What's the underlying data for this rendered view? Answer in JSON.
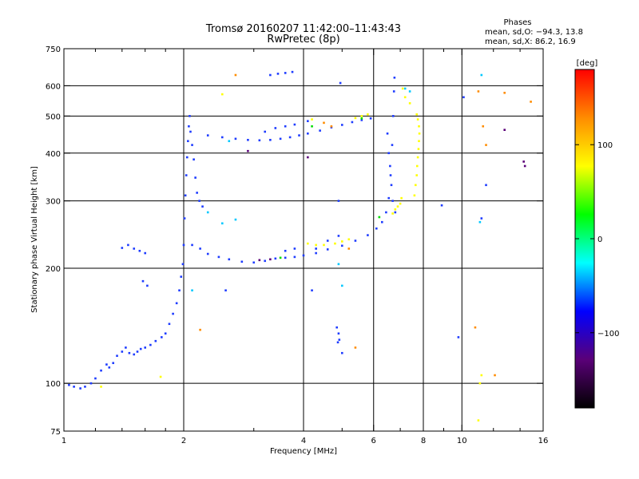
{
  "title_line1": "Tromsø 20160207 11:42:00–11:43:43",
  "title_line2": "RwPretec (8p)",
  "legend": {
    "heading": "Phases",
    "line1": "mean, sd,O: −94.3, 13.8",
    "line2": "mean, sd,X:  86.2, 16.9"
  },
  "colorbar": {
    "unit_label": "[deg]",
    "tick_labels": [
      "100",
      "0",
      "−100"
    ],
    "tick_values": [
      100,
      0,
      -100
    ],
    "range": [
      -180,
      180
    ],
    "colors": [
      "#ff0000",
      "#ff8c00",
      "#ffff00",
      "#00ff00",
      "#00ffff",
      "#0000ff",
      "#5a0078",
      "#000000"
    ]
  },
  "chart_data": {
    "type": "scatter",
    "xlabel": "Frequency [MHz]",
    "ylabel": "Stationary phase Virtual Height [km]",
    "x_scale": "log",
    "y_scale": "log",
    "xlim": [
      1,
      16
    ],
    "ylim": [
      75,
      750
    ],
    "x_ticks": [
      1,
      2,
      4,
      6,
      8,
      10,
      16
    ],
    "x_tick_labels": [
      "1",
      "2",
      "4",
      "6",
      "8",
      "10",
      "16"
    ],
    "x_minor_ticks": [
      1.2,
      1.4,
      1.6,
      1.8,
      3,
      5,
      7,
      9,
      12,
      14
    ],
    "y_ticks": [
      75,
      100,
      200,
      300,
      400,
      500,
      600,
      750
    ],
    "y_tick_labels": [
      "75",
      "100",
      "200",
      "300",
      "400",
      "500",
      "600",
      "750"
    ],
    "grid": true,
    "series": [
      {
        "color": "#1e3cff",
        "points": [
          [
            1.03,
            99
          ],
          [
            1.06,
            98
          ],
          [
            1.1,
            97
          ],
          [
            1.13,
            98
          ],
          [
            1.17,
            100
          ],
          [
            1.2,
            103
          ],
          [
            1.24,
            108
          ],
          [
            1.28,
            112
          ],
          [
            1.3,
            110
          ],
          [
            1.33,
            113
          ],
          [
            1.36,
            118
          ],
          [
            1.4,
            121
          ],
          [
            1.43,
            124
          ],
          [
            1.46,
            120
          ],
          [
            1.5,
            119
          ],
          [
            1.53,
            121
          ],
          [
            1.56,
            123
          ],
          [
            1.6,
            124
          ],
          [
            1.65,
            126
          ],
          [
            1.7,
            129
          ],
          [
            1.76,
            132
          ],
          [
            1.8,
            135
          ],
          [
            1.84,
            143
          ],
          [
            1.88,
            152
          ],
          [
            1.92,
            162
          ],
          [
            1.95,
            175
          ],
          [
            1.97,
            190
          ],
          [
            1.99,
            205
          ],
          [
            2.0,
            230
          ],
          [
            2.01,
            270
          ],
          [
            2.02,
            310
          ],
          [
            2.03,
            350
          ],
          [
            2.04,
            390
          ],
          [
            2.05,
            430
          ],
          [
            2.06,
            470
          ],
          [
            2.07,
            500
          ],
          [
            2.08,
            455
          ],
          [
            2.1,
            420
          ],
          [
            2.12,
            385
          ],
          [
            2.14,
            345
          ],
          [
            2.16,
            315
          ],
          [
            2.19,
            300
          ],
          [
            2.23,
            290
          ],
          [
            2.1,
            230
          ],
          [
            2.2,
            225
          ],
          [
            2.3,
            218
          ],
          [
            2.45,
            214
          ],
          [
            2.6,
            211
          ],
          [
            2.8,
            208
          ],
          [
            3.0,
            207
          ],
          [
            3.2,
            209
          ],
          [
            3.4,
            212
          ],
          [
            3.6,
            213
          ],
          [
            3.8,
            214
          ],
          [
            4.0,
            216
          ],
          [
            4.3,
            219
          ],
          [
            4.6,
            224
          ],
          [
            5.0,
            229
          ],
          [
            5.4,
            236
          ],
          [
            5.8,
            244
          ],
          [
            6.1,
            254
          ],
          [
            6.3,
            264
          ],
          [
            6.45,
            280
          ],
          [
            6.55,
            305
          ],
          [
            6.62,
            350
          ],
          [
            6.68,
            420
          ],
          [
            6.72,
            500
          ],
          [
            6.75,
            580
          ],
          [
            6.77,
            630
          ],
          [
            6.5,
            450
          ],
          [
            6.55,
            400
          ],
          [
            6.6,
            370
          ],
          [
            6.65,
            330
          ],
          [
            6.7,
            300
          ],
          [
            6.8,
            280
          ],
          [
            2.3,
            445
          ],
          [
            2.5,
            440
          ],
          [
            2.7,
            436
          ],
          [
            2.9,
            433
          ],
          [
            3.1,
            432
          ],
          [
            3.3,
            433
          ],
          [
            3.5,
            436
          ],
          [
            3.7,
            440
          ],
          [
            3.9,
            445
          ],
          [
            4.1,
            450
          ],
          [
            4.4,
            458
          ],
          [
            4.7,
            467
          ],
          [
            5.0,
            474
          ],
          [
            5.3,
            482
          ],
          [
            5.6,
            488
          ],
          [
            5.9,
            493
          ],
          [
            3.2,
            455
          ],
          [
            3.4,
            465
          ],
          [
            3.6,
            470
          ],
          [
            3.8,
            475
          ],
          [
            4.1,
            485
          ],
          [
            3.3,
            640
          ],
          [
            3.45,
            645
          ],
          [
            3.6,
            648
          ],
          [
            3.75,
            652
          ],
          [
            1.5,
            225
          ],
          [
            1.55,
            222
          ],
          [
            1.6,
            219
          ],
          [
            1.45,
            230
          ],
          [
            1.4,
            226
          ],
          [
            4.3,
            225
          ],
          [
            4.6,
            236
          ],
          [
            4.9,
            243
          ],
          [
            3.8,
            225
          ],
          [
            3.6,
            222
          ],
          [
            4.95,
            610
          ],
          [
            4.9,
            300
          ],
          [
            4.9,
            135
          ],
          [
            4.92,
            130
          ],
          [
            4.88,
            128
          ],
          [
            4.85,
            140
          ],
          [
            5.0,
            120
          ],
          [
            1.58,
            185
          ],
          [
            1.62,
            180
          ],
          [
            2.55,
            175
          ],
          [
            4.2,
            175
          ],
          [
            10.1,
            560
          ],
          [
            8.9,
            292
          ],
          [
            9.8,
            132
          ],
          [
            11.5,
            330
          ],
          [
            11.2,
            270
          ]
        ]
      },
      {
        "color": "#ffff00",
        "points": [
          [
            7.6,
            310
          ],
          [
            7.65,
            330
          ],
          [
            7.7,
            350
          ],
          [
            7.72,
            370
          ],
          [
            7.75,
            390
          ],
          [
            7.78,
            410
          ],
          [
            7.8,
            430
          ],
          [
            7.82,
            450
          ],
          [
            7.8,
            470
          ],
          [
            7.75,
            490
          ],
          [
            7.7,
            505
          ],
          [
            7.4,
            540
          ],
          [
            7.2,
            560
          ],
          [
            7.1,
            590
          ],
          [
            7.05,
            305
          ],
          [
            7.0,
            295
          ],
          [
            6.9,
            290
          ],
          [
            6.8,
            285
          ],
          [
            6.7,
            278
          ],
          [
            5.2,
            238
          ],
          [
            5.0,
            235
          ],
          [
            4.8,
            232
          ],
          [
            4.5,
            230
          ],
          [
            4.3,
            230
          ],
          [
            4.1,
            232
          ],
          [
            5.4,
            494
          ],
          [
            5.6,
            500
          ],
          [
            5.8,
            505
          ],
          [
            1.24,
            98
          ],
          [
            1.75,
            104
          ],
          [
            2.5,
            570
          ],
          [
            4.2,
            490
          ],
          [
            11.2,
            105
          ],
          [
            11.1,
            100
          ],
          [
            11.0,
            80
          ]
        ]
      },
      {
        "color": "#ff8c00",
        "points": [
          [
            5.2,
            225
          ],
          [
            4.7,
            470
          ],
          [
            4.5,
            480
          ],
          [
            11.0,
            580
          ],
          [
            11.3,
            470
          ],
          [
            11.5,
            420
          ],
          [
            12.1,
            105
          ],
          [
            10.8,
            140
          ],
          [
            12.8,
            575
          ],
          [
            14.9,
            545
          ],
          [
            2.2,
            138
          ],
          [
            5.4,
            124
          ],
          [
            2.7,
            640
          ]
        ]
      },
      {
        "color": "#00c8ff",
        "points": [
          [
            2.3,
            280
          ],
          [
            2.5,
            262
          ],
          [
            2.7,
            268
          ],
          [
            2.1,
            175
          ],
          [
            4.9,
            205
          ],
          [
            5.0,
            180
          ],
          [
            11.2,
            640
          ],
          [
            11.1,
            264
          ],
          [
            7.2,
            590
          ],
          [
            7.4,
            580
          ],
          [
            2.6,
            430
          ]
        ]
      },
      {
        "color": "#00dd00",
        "points": [
          [
            3.5,
            213
          ],
          [
            5.6,
            493
          ],
          [
            4.2,
            470
          ],
          [
            6.2,
            272
          ]
        ]
      },
      {
        "color": "#5a0078",
        "points": [
          [
            3.1,
            210
          ],
          [
            3.3,
            211
          ],
          [
            14.3,
            380
          ],
          [
            14.4,
            370
          ],
          [
            12.8,
            460
          ],
          [
            4.1,
            390
          ],
          [
            2.9,
            405
          ]
        ]
      }
    ]
  }
}
